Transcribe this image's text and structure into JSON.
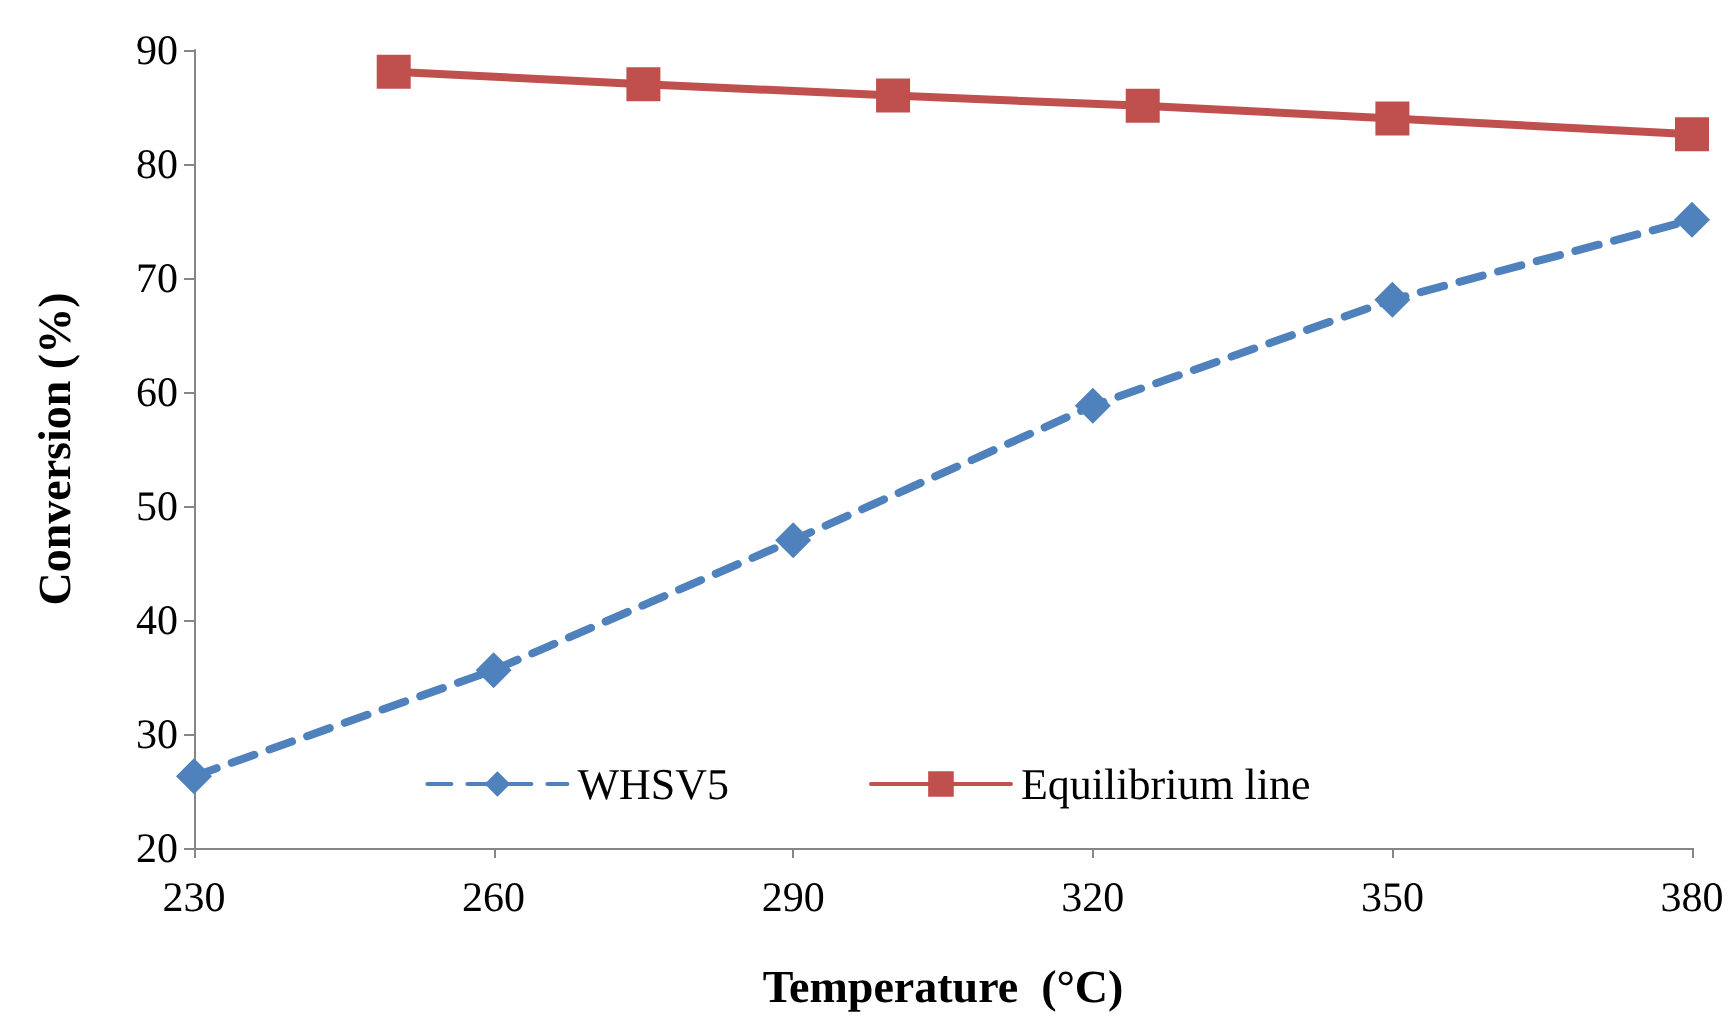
{
  "chart_data": {
    "type": "line",
    "xlabel": "Temperature  (°C)",
    "ylabel": "Conversion (%)",
    "xlim": [
      230,
      380
    ],
    "xticks": [
      230,
      260,
      290,
      320,
      350,
      380
    ],
    "ylim": [
      20,
      90
    ],
    "yticks": [
      20,
      30,
      40,
      50,
      60,
      70,
      80,
      90
    ],
    "grid": false,
    "legend": "bottom",
    "series": [
      {
        "name": "WHSV5",
        "color": "#4f81bd",
        "marker": "diamond",
        "line_style": "dashed",
        "x": [
          230,
          260,
          290,
          320,
          350,
          380
        ],
        "values": [
          26.3,
          35.6,
          47,
          58.8,
          68.1,
          75.1
        ]
      },
      {
        "name": "Equilibrium line",
        "color": "#c0504d",
        "marker": "square",
        "line_style": "solid",
        "x": [
          250,
          275,
          300,
          325,
          350,
          380
        ],
        "values": [
          88.1,
          87,
          86,
          85.1,
          84,
          82.6
        ]
      }
    ]
  }
}
